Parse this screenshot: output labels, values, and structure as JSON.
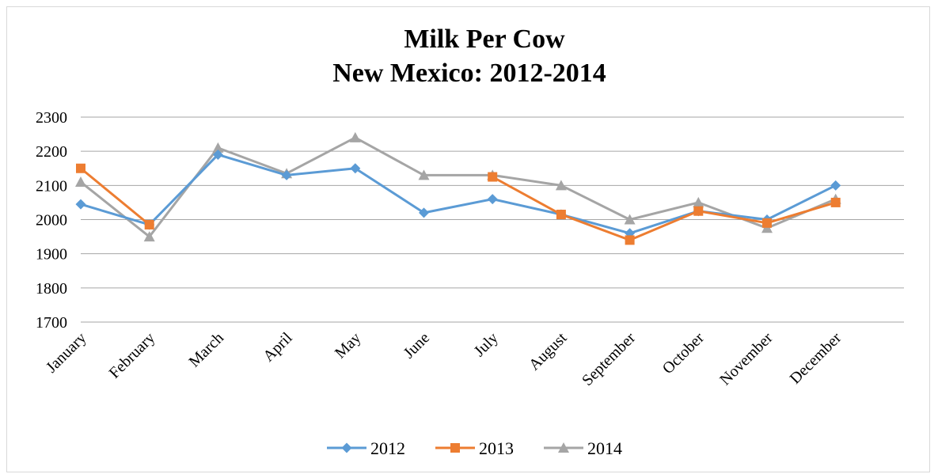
{
  "chart_data": {
    "type": "line",
    "title": "Milk Per Cow",
    "subtitle": "New Mexico: 2012-2014",
    "xlabel": "",
    "ylabel": "",
    "categories": [
      "January",
      "February",
      "March",
      "April",
      "May",
      "June",
      "July",
      "August",
      "September",
      "October",
      "November",
      "December"
    ],
    "ylim": [
      1700,
      2300
    ],
    "yticks": [
      1700,
      1800,
      1900,
      2000,
      2100,
      2200,
      2300
    ],
    "grid": true,
    "legend_position": "bottom",
    "series": [
      {
        "name": "2012",
        "color": "#5b9bd5",
        "marker": "diamond",
        "values": [
          2045,
          1985,
          2190,
          2130,
          2150,
          2020,
          2060,
          2015,
          1960,
          2025,
          2000,
          2100
        ]
      },
      {
        "name": "2013",
        "color": "#ed7d31",
        "marker": "square",
        "values": [
          2150,
          1985,
          null,
          null,
          null,
          null,
          2125,
          2015,
          1940,
          2025,
          1990,
          2050
        ]
      },
      {
        "name": "2014",
        "color": "#a5a5a5",
        "marker": "triangle",
        "values": [
          2110,
          1950,
          2210,
          2135,
          2240,
          2130,
          2130,
          2100,
          2000,
          2050,
          1975,
          2060
        ]
      }
    ]
  }
}
